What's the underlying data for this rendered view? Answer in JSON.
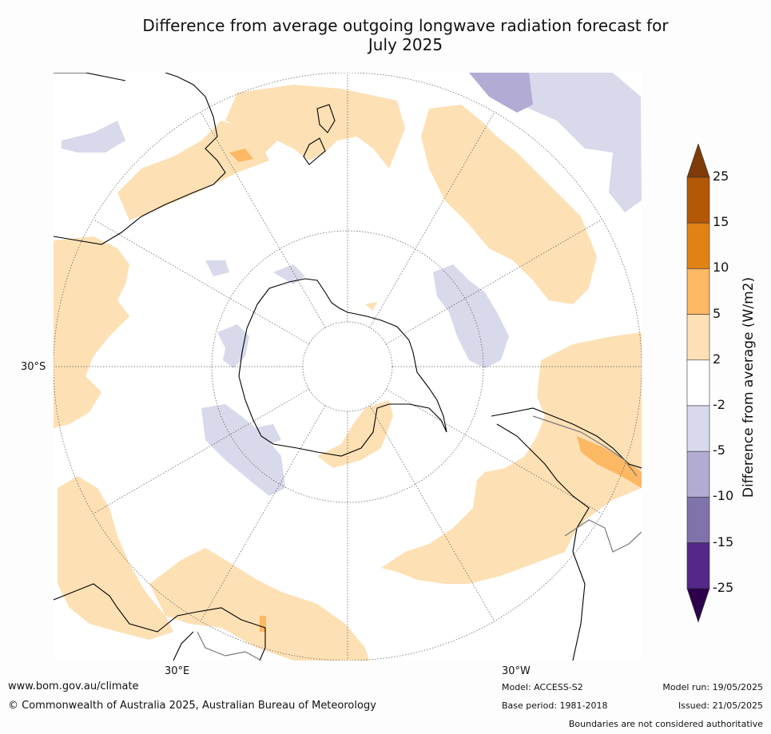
{
  "title": {
    "line1": "Difference from average outgoing longwave radiation forecast for",
    "line2": "July 2025"
  },
  "map": {
    "labels": {
      "lat_30s": "30°S",
      "lon_30e": "30°E",
      "lon_30w": "30°W"
    },
    "colors": {
      "pos_2_5": "#fde0b4",
      "pos_5_10": "#fdb864",
      "neg_2_5": "#d8d9eb",
      "neg_5_10": "#b2abd3",
      "coast": "#000000",
      "boundary": "#7a7a7a",
      "grid": "#555555"
    }
  },
  "colorbar": {
    "title": "Difference from average (W/m2)",
    "ticks": [
      "25",
      "15",
      "10",
      "5",
      "2",
      "-2",
      "-5",
      "-10",
      "-15",
      "-25"
    ],
    "colors": [
      "#7f3b08",
      "#b35806",
      "#e08214",
      "#fdb863",
      "#fee0b6",
      "#ffffff",
      "#d8daeb",
      "#b2abd2",
      "#8073ac",
      "#542788",
      "#2d004b"
    ]
  },
  "footer": {
    "url": "www.bom.gov.au/climate",
    "copyright": "© Commonwealth of Australia 2025, Australian Bureau of Meteorology",
    "model": "Model: ACCESS-S2",
    "base_period": "Base period: 1981-2018",
    "model_run": "Model run: 19/05/2025",
    "issued": "Issued: 21/05/2025",
    "disclaimer": "Boundaries are not considered authoritative"
  }
}
